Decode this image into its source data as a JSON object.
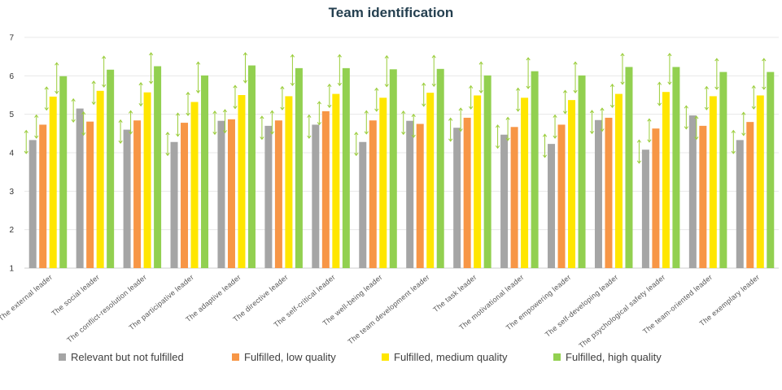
{
  "chart_data": {
    "type": "bar",
    "title": "Team identification",
    "xlabel": "",
    "ylabel": "",
    "ylim": [
      1,
      7
    ],
    "yticks": [
      "1",
      "2",
      "3",
      "4",
      "5",
      "6",
      "7"
    ],
    "grid": true,
    "legend_position": "bottom",
    "error_bars": "arrows",
    "categories": [
      "The external leader",
      "The social leader",
      "The conflict-resolution leader",
      "The participative leader",
      "The adaptive leader",
      "The directive leader",
      "The self-critical leader",
      "The well-being leader",
      "The team development leader",
      "The task leader",
      "The motivational leader",
      "The empowering leader",
      "The self-developing leader",
      "The psychological safety leader",
      "The team-oriented leader",
      "The exemplary leader"
    ],
    "series": [
      {
        "name": "Relevant but not fulfilled",
        "color": "#a5a5a5",
        "values": [
          4.33,
          5.15,
          4.6,
          4.28,
          4.83,
          4.7,
          4.73,
          4.28,
          4.83,
          4.65,
          4.47,
          4.23,
          4.85,
          4.08,
          4.97,
          4.33
        ]
      },
      {
        "name": "Fulfilled, low quality",
        "color": "#f79646",
        "values": [
          4.73,
          4.81,
          4.84,
          4.78,
          4.87,
          4.84,
          5.08,
          4.84,
          4.75,
          4.91,
          4.67,
          4.73,
          4.91,
          4.63,
          4.7,
          4.8
        ]
      },
      {
        "name": "Fulfilled, medium quality",
        "color": "#ffe600",
        "values": [
          5.46,
          5.61,
          5.57,
          5.32,
          5.5,
          5.47,
          5.53,
          5.43,
          5.56,
          5.49,
          5.43,
          5.37,
          5.53,
          5.58,
          5.47,
          5.49
        ]
      },
      {
        "name": "Fulfilled, high quality",
        "color": "#92d050",
        "values": [
          5.99,
          6.16,
          6.25,
          6.01,
          6.27,
          6.2,
          6.2,
          6.17,
          6.18,
          6.01,
          6.12,
          6.01,
          6.23,
          6.23,
          6.1,
          6.1
        ]
      }
    ]
  }
}
